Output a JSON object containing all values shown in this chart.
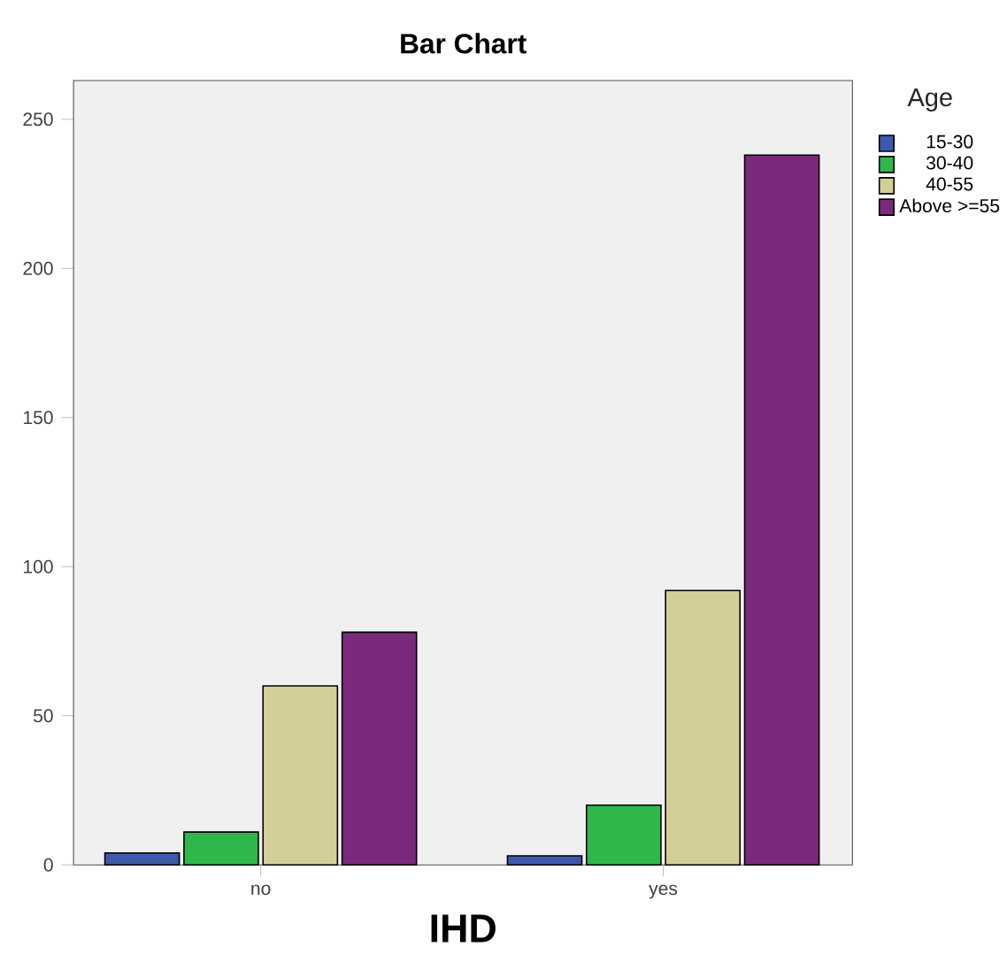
{
  "chart_data": {
    "type": "bar",
    "title": "Bar Chart",
    "xlabel": "IHD",
    "legend_title": "Age",
    "categories": [
      "no",
      "yes"
    ],
    "series": [
      {
        "name": "15-30",
        "color": "#3e58ac",
        "values": [
          4,
          3
        ]
      },
      {
        "name": "30-40",
        "color": "#2eb84b",
        "values": [
          11,
          20
        ]
      },
      {
        "name": "40-55",
        "color": "#d4cf98",
        "values": [
          60,
          92
        ]
      },
      {
        "name": "Above >=55",
        "color": "#7b2a7b",
        "values": [
          78,
          238
        ]
      }
    ],
    "ylim": [
      0,
      263
    ],
    "yticks": [
      0,
      50,
      100,
      150,
      200,
      250
    ],
    "grid": false,
    "legend": "top right"
  }
}
